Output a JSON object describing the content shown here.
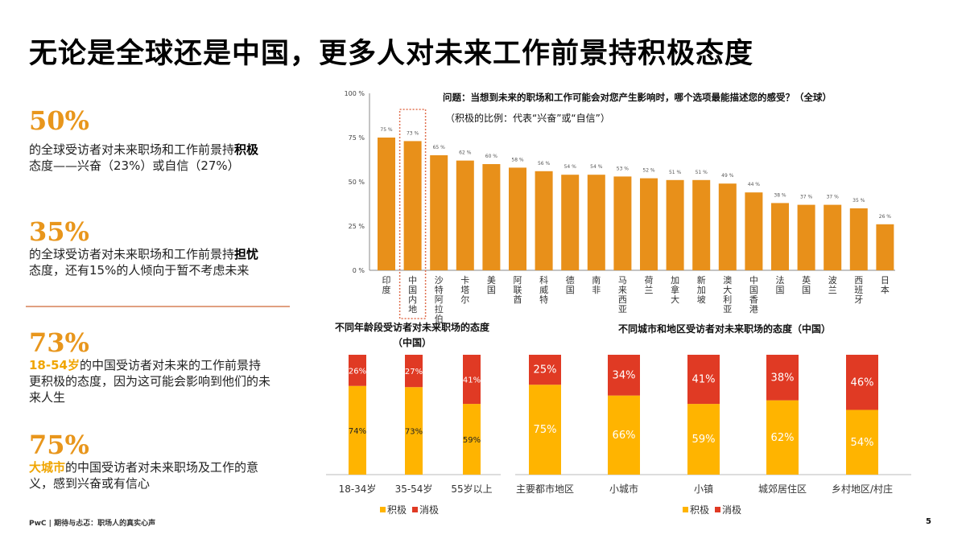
{
  "title": "无论是全球还是中国，更多人对未来工作前景持积极态度",
  "stats": [
    {
      "value": "50%",
      "text_pre": "的全球受访者对未来职场和工作前景持",
      "bold": "积极",
      "text_post": "态度——兴奋（23%）或自信（27%）"
    },
    {
      "value": "35%",
      "text_pre": "的全球受访者对未来职场和工作前景持",
      "bold": "担忧",
      "text_post": "态度，还有15%的人倾向于暂不考虑未来"
    },
    {
      "value": "73%",
      "highlight": "18-54岁",
      "text_post": "的中国受访者对未来的工作前景持更积极的态度，因为这可能会影响到他们的未来人生"
    },
    {
      "value": "75%",
      "highlight": "大城市",
      "text_post": "的中国受访者对未来职场及工作的意义，感到兴奋或有信心"
    }
  ],
  "footer": "PwC | 期待与忐忑：职场人的真实心声",
  "page_number": "5",
  "colors": {
    "bar": "#e8901a",
    "positive": "#ffb400",
    "negative": "#e03a24",
    "highlight_box": "#e07050",
    "stat": "#e8961c"
  },
  "chart_data": [
    {
      "type": "bar",
      "title": "问题：当想到未来的职场和工作可能会对您产生影响时，哪个选项最能描述您的感受？（全球）",
      "subtitle": "（积极的比例：代表“兴奋”或“自信”）",
      "categories": [
        "印度",
        "中国内地",
        "沙特阿拉伯",
        "卡塔尔",
        "美国",
        "阿联酋",
        "科威特",
        "德国",
        "南非",
        "马来西亚",
        "荷兰",
        "加拿大",
        "新加坡",
        "澳大利亚",
        "中国香港",
        "法国",
        "英国",
        "波兰",
        "西班牙",
        "日本"
      ],
      "values": [
        75,
        73,
        65,
        62,
        60,
        58,
        56,
        54,
        54,
        53,
        52,
        51,
        51,
        49,
        44,
        38,
        37,
        37,
        35,
        26
      ],
      "value_labels": [
        "75 %",
        "73 %",
        "65 %",
        "62 %",
        "60 %",
        "58 %",
        "56 %",
        "54 %",
        "54 %",
        "53 %",
        "52 %",
        "51 %",
        "51 %",
        "49 %",
        "44 %",
        "38 %",
        "37 %",
        "37 %",
        "35 %",
        "26 %"
      ],
      "highlighted": "中国内地",
      "ylim": [
        0,
        100
      ],
      "yticks": [
        "0 %",
        "25 %",
        "50 %",
        "75 %",
        "100 %"
      ],
      "grid": false
    },
    {
      "type": "bar",
      "stacked": true,
      "title": "不同年龄段受访者对未来职场的态度（中国）",
      "categories": [
        "18-34岁",
        "35-54岁",
        "55岁以上"
      ],
      "series": [
        {
          "name": "积极",
          "values": [
            74,
            73,
            59
          ],
          "labels": [
            "74%",
            "73%",
            "59%"
          ]
        },
        {
          "name": "消极",
          "values": [
            26,
            27,
            41
          ],
          "labels": [
            "26%",
            "27%",
            "41%"
          ]
        }
      ],
      "ylim": [
        0,
        100
      ],
      "legend": "bottom"
    },
    {
      "type": "bar",
      "stacked": true,
      "title": "不同城市和地区受访者对未来职场的态度（中国）",
      "categories": [
        "主要都市地区",
        "小城市",
        "小镇",
        "城郊居住区",
        "乡村地区/村庄"
      ],
      "series": [
        {
          "name": "积极",
          "values": [
            75,
            66,
            59,
            62,
            54
          ],
          "labels": [
            "75%",
            "66%",
            "59%",
            "62%",
            "54%"
          ]
        },
        {
          "name": "消极",
          "values": [
            25,
            34,
            41,
            38,
            46
          ],
          "labels": [
            "25%",
            "34%",
            "41%",
            "38%",
            "46%"
          ]
        }
      ],
      "ylim": [
        0,
        100
      ],
      "legend": "bottom"
    }
  ]
}
